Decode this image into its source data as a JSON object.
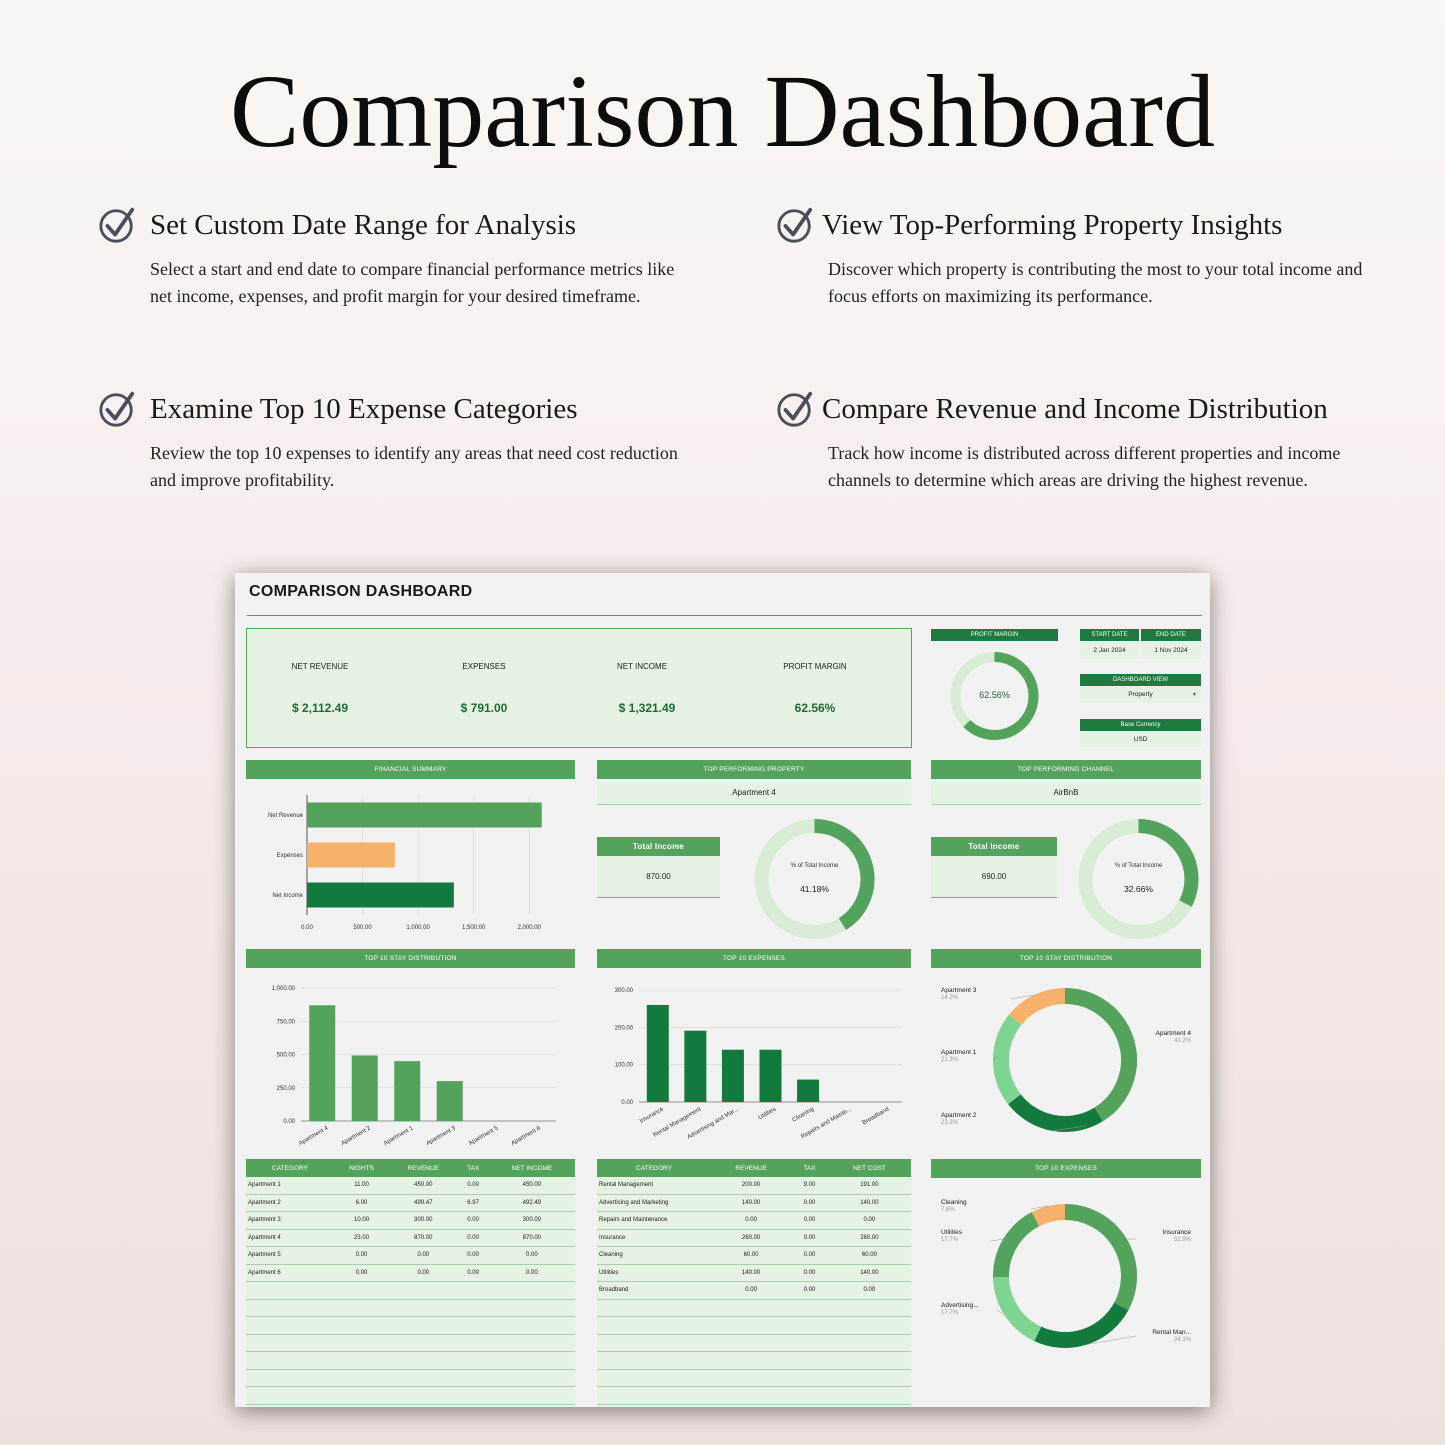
{
  "page_title": "Comparison Dashboard",
  "features": [
    {
      "title": "Set Custom Date Range for Analysis",
      "body": "Select a start and end date to compare financial performance metrics like net income, expenses, and profit margin for your desired timeframe."
    },
    {
      "title": "View Top-Performing Property Insights",
      "body": "Discover which property is contributing the most to your total income and focus efforts on maximizing its performance."
    },
    {
      "title": "Examine Top 10 Expense Categories",
      "body": "Review the top 10 expenses to identify any areas that need cost reduction and improve profitability."
    },
    {
      "title": "Compare Revenue and Income Distribution",
      "body": "Track how income is distributed across different properties and income channels to determine which areas are driving the highest revenue."
    }
  ],
  "dashboard": {
    "title": "COMPARISON DASHBOARD",
    "kpis": [
      {
        "label": "NET REVENUE",
        "value": "$ 2,112.49"
      },
      {
        "label": "EXPENSES",
        "value": "$ 791.00"
      },
      {
        "label": "NET INCOME",
        "value": "$ 1,321.49"
      },
      {
        "label": "PROFIT MARGIN",
        "value": "62.56%"
      }
    ],
    "profit_margin": {
      "header": "PROFIT MARGIN",
      "value": "62.56%",
      "fraction": 0.6256
    },
    "dates": {
      "start_label": "START DATE",
      "end_label": "END DATE",
      "start": "2 Jan 2024",
      "end": "1 Nov 2024"
    },
    "dashboard_view": {
      "label": "DASHBOARD VIEW",
      "value": "Property"
    },
    "base_currency": {
      "label": "Base Currency",
      "value": "USD"
    },
    "top_property": {
      "header": "TOP PERFORMING PROPERTY",
      "name": "Apartment 4",
      "income_label": "Total Income",
      "income": "870.00",
      "pct_label": "% of Total Income",
      "pct": "41.18%",
      "fraction": 0.4118
    },
    "top_channel": {
      "header": "TOP PERFORMING CHANNEL",
      "name": "AirBnB",
      "income_label": "Total Income",
      "income": "690.00",
      "pct_label": "% of Total Income",
      "pct": "32.66%",
      "fraction": 0.3266
    },
    "stay_table": {
      "headers": [
        "CATEGORY",
        "NIGHTS",
        "REVENUE",
        "TAX",
        "NET INCOME"
      ],
      "rows": [
        [
          "Apartment 1",
          "11.00",
          "450.00",
          "0.00",
          "450.00"
        ],
        [
          "Apartment 2",
          "6.00",
          "499.47",
          "6.97",
          "492.49"
        ],
        [
          "Apartment 3",
          "10.00",
          "300.00",
          "0.00",
          "300.00"
        ],
        [
          "Apartment 4",
          "23.00",
          "870.00",
          "0.00",
          "870.00"
        ],
        [
          "Apartment 5",
          "0.00",
          "0.00",
          "0.00",
          "0.00"
        ],
        [
          "Apartment 6",
          "0.00",
          "0.00",
          "0.00",
          "0.00"
        ]
      ]
    },
    "expense_table": {
      "headers": [
        "CATEGORY",
        "REVENUE",
        "TAX",
        "NET COST"
      ],
      "rows": [
        [
          "Rental Management",
          "200.00",
          "9.00",
          "191.00"
        ],
        [
          "Advertising and Marketing",
          "140.00",
          "0.00",
          "140.00"
        ],
        [
          "Repairs and Maintenance",
          "0.00",
          "0.00",
          "0.00"
        ],
        [
          "Insurance",
          "260.00",
          "0.00",
          "260.00"
        ],
        [
          "Cleaning",
          "60.00",
          "0.00",
          "60.00"
        ],
        [
          "Utilities",
          "140.00",
          "0.00",
          "140.00"
        ],
        [
          "Broadband",
          "0.00",
          "0.00",
          "0.00"
        ]
      ]
    },
    "colors": {
      "green": "#53a35d",
      "dark_green": "#137a3d",
      "light_green": "#d9ecd5",
      "orange": "#f6b26b",
      "mint": "#7ed491"
    }
  },
  "chart_data": [
    {
      "type": "bar",
      "title": "FINANCIAL SUMMARY",
      "orientation": "horizontal",
      "categories": [
        "Net Revenue",
        "Expenses",
        "Net Income"
      ],
      "values": [
        2112.49,
        791.0,
        1321.49
      ],
      "colors": [
        "#53a35d",
        "#f6b26b",
        "#137a3d"
      ],
      "xticks": [
        "0.00",
        "500.00",
        "1,000.00",
        "1,500.00",
        "2,000.00"
      ],
      "xlim": [
        0,
        2250
      ]
    },
    {
      "type": "bar",
      "title": "TOP 10 STAY DISTRIBUTION",
      "categories": [
        "Apartment 4",
        "Apartment 2",
        "Apartment 1",
        "Apartment 3",
        "Apartment 5",
        "Apartment 6"
      ],
      "values": [
        870,
        492.49,
        450,
        300,
        0,
        0
      ],
      "yticks": [
        "0.00",
        "250.00",
        "500.00",
        "750.00",
        "1,000.00"
      ],
      "ylim": [
        0,
        1000
      ]
    },
    {
      "type": "bar",
      "title": "TOP 10 EXPENSES",
      "categories": [
        "Insurance",
        "Rental Management",
        "Advertising and Mar...",
        "Utilities",
        "Cleaning",
        "Repairs and Mainte...",
        "Broadband"
      ],
      "values": [
        260,
        191,
        140,
        140,
        60,
        0,
        0
      ],
      "yticks": [
        "0.00",
        "100.00",
        "200.00",
        "300.00"
      ],
      "ylim": [
        0,
        300
      ]
    },
    {
      "type": "pie",
      "title": "TOP 10 STAY DISTRIBUTION",
      "slices": [
        {
          "label": "Apartment 4",
          "pct": "41.2%",
          "value": 41.2,
          "color": "#53a35d"
        },
        {
          "label": "Apartment 2",
          "pct": "23.3%",
          "value": 23.3,
          "color": "#137a3d"
        },
        {
          "label": "Apartment 1",
          "pct": "21.3%",
          "value": 21.3,
          "color": "#7ed491"
        },
        {
          "label": "Apartment 3",
          "pct": "14.2%",
          "value": 14.2,
          "color": "#f6b26b"
        }
      ]
    },
    {
      "type": "pie",
      "title": "TOP 10 EXPENSES",
      "slices": [
        {
          "label": "Insurance",
          "pct": "32.9%",
          "value": 32.9,
          "color": "#53a35d"
        },
        {
          "label": "Rental Man...",
          "pct": "24.1%",
          "value": 24.1,
          "color": "#137a3d"
        },
        {
          "label": "Advertising...",
          "pct": "17.7%",
          "value": 17.7,
          "color": "#7ed491"
        },
        {
          "label": "Utilities",
          "pct": "17.7%",
          "value": 17.7,
          "color": "#53a35d"
        },
        {
          "label": "Cleaning",
          "pct": "7.6%",
          "value": 7.6,
          "color": "#f6b26b"
        }
      ]
    }
  ]
}
